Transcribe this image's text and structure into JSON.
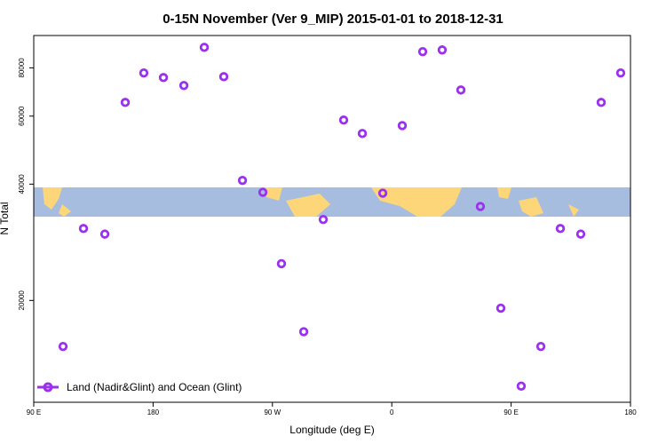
{
  "chart_data": {
    "type": "scatter",
    "title": "0-15N November (Ver 9_MIP)   2015-01-01 to 2018-12-31",
    "xlabel": "Longitude (deg E)",
    "ylabel": "N Total",
    "log_y": true,
    "color": "#9b30f0",
    "legend_loc": "lower left",
    "series": [
      {
        "name": "Land (Nadir&Glint) and Ocean (Glint)",
        "color": "#9b30f0",
        "x": [
          112.1,
          127.5,
          143.6,
          159.0,
          173.0,
          187.8,
          203.2,
          218.6,
          233.3,
          247.4,
          262.8,
          276.8,
          293.6,
          308.3,
          323.7,
          337.8,
          353.2,
          367.9,
          383.3,
          398.0,
          412.1,
          426.8,
          442.2,
          457.6,
          472.4,
          487.1,
          502.5,
          517.9,
          532.6
        ],
        "values": [
          15200,
          30700,
          29700,
          65100,
          77600,
          75500,
          72000,
          90400,
          75900,
          40900,
          38100,
          24900,
          16600,
          32400,
          58600,
          54100,
          37900,
          56700,
          88100,
          89000,
          70100,
          35000,
          19100,
          12000,
          15200,
          30700,
          29700,
          65100,
          77600
        ]
      }
    ],
    "xlim": [
      90,
      540
    ],
    "xticks": [
      {
        "value": 90,
        "label": "90 E"
      },
      180,
      {
        "value": 270,
        "label": "90 W"
      },
      {
        "value": 360,
        "label": "0"
      },
      {
        "value": 450,
        "label": "90 E"
      },
      {
        "value": 540,
        "label": "180"
      }
    ],
    "ylim": [
      10900,
      97000
    ],
    "yticks": [
      20000,
      40000,
      60000,
      80000
    ]
  }
}
